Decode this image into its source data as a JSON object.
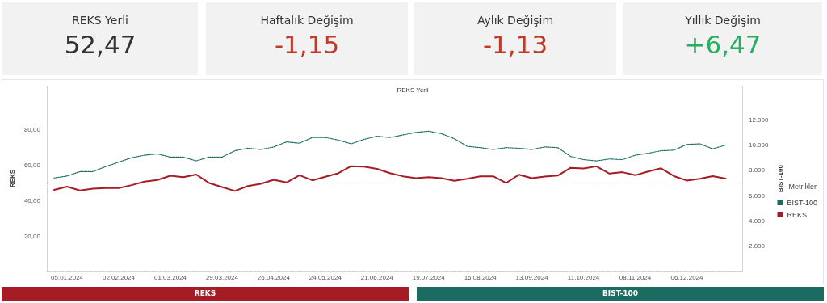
{
  "chart_data": [
    {
      "type": "other",
      "title": "REKS Yerli",
      "annotations": [
        "52,47"
      ],
      "color": "#333333"
    },
    {
      "type": "other",
      "title": "Haftalık Değişim",
      "annotations": [
        "-1,15"
      ],
      "color": "#c0392b"
    },
    {
      "type": "other",
      "title": "Aylık Değişim",
      "annotations": [
        "-1,13"
      ],
      "color": "#c0392b"
    },
    {
      "type": "other",
      "title": "Yıllık Değişim",
      "annotations": [
        "+6,47"
      ],
      "color": "#27ae60"
    },
    {
      "type": "line",
      "title": "REKS Yerli",
      "ylabel": "REKS",
      "y2label": "BIST-100",
      "legend_title": "Metrikler",
      "legend": "right",
      "grid": false,
      "marker": "none",
      "x": [
        "2023-12-29",
        "2024-01-05",
        "2024-01-12",
        "2024-01-19",
        "2024-01-26",
        "2024-02-02",
        "2024-02-09",
        "2024-02-16",
        "2024-02-23",
        "2024-03-01",
        "2024-03-08",
        "2024-03-15",
        "2024-03-22",
        "2024-03-29",
        "2024-04-05",
        "2024-04-12",
        "2024-04-19",
        "2024-04-26",
        "2024-05-03",
        "2024-05-10",
        "2024-05-17",
        "2024-05-24",
        "2024-05-31",
        "2024-06-07",
        "2024-06-14",
        "2024-06-21",
        "2024-06-28",
        "2024-07-05",
        "2024-07-12",
        "2024-07-19",
        "2024-07-26",
        "2024-08-02",
        "2024-08-09",
        "2024-08-16",
        "2024-08-23",
        "2024-08-30",
        "2024-09-06",
        "2024-09-13",
        "2024-09-20",
        "2024-09-27",
        "2024-10-04",
        "2024-10-11",
        "2024-10-18",
        "2024-10-25",
        "2024-11-01",
        "2024-11-08",
        "2024-11-15",
        "2024-11-22",
        "2024-11-29",
        "2024-12-06",
        "2024-12-13",
        "2024-12-20",
        "2024-12-27"
      ],
      "xlim": [
        "2023-12-25",
        "2025-01-05"
      ],
      "xticks": [
        {
          "value": "2024-01-05",
          "label": "05.01.2024"
        },
        {
          "value": "2024-02-02",
          "label": "02.02.2024"
        },
        {
          "value": "2024-03-01",
          "label": "01.03.2024"
        },
        {
          "value": "2024-03-29",
          "label": "29.03.2024"
        },
        {
          "value": "2024-04-26",
          "label": "26.04.2024"
        },
        {
          "value": "2024-05-24",
          "label": "24.05.2024"
        },
        {
          "value": "2024-06-21",
          "label": "21.06.2024"
        },
        {
          "value": "2024-07-19",
          "label": "19.07.2024"
        },
        {
          "value": "2024-08-16",
          "label": "16.08.2024"
        },
        {
          "value": "2024-09-13",
          "label": "13.09.2024"
        },
        {
          "value": "2024-10-11",
          "label": "11.10.2024"
        },
        {
          "value": "2024-11-08",
          "label": "08.11.2024"
        },
        {
          "value": "2024-12-06",
          "label": "06.12.2024"
        }
      ],
      "ylim": [
        0,
        105
      ],
      "yticks": [
        {
          "value": 20,
          "label": "20,00"
        },
        {
          "value": 40,
          "label": "40,00"
        },
        {
          "value": 60,
          "label": "60,00"
        },
        {
          "value": 80,
          "label": "80,00"
        }
      ],
      "y2lim": [
        0,
        14700
      ],
      "y2ticks": [
        {
          "value": 2000,
          "label": "2.000"
        },
        {
          "value": 4000,
          "label": "4.000"
        },
        {
          "value": 6000,
          "label": "6.000"
        },
        {
          "value": 8000,
          "label": "8.000"
        },
        {
          "value": 10000,
          "label": "10.000"
        },
        {
          "value": 12000,
          "label": "12.000"
        }
      ],
      "ref_lines": [
        {
          "axis": "y",
          "value": 50,
          "label": null,
          "color": "#cccccc",
          "line_style": "dotted"
        }
      ],
      "series": [
        {
          "name": "BIST-100",
          "color": "#1b6b63",
          "axis": "y2",
          "line_style": "dotted",
          "values": [
            7400,
            7550,
            7900,
            7900,
            8300,
            8650,
            9000,
            9200,
            9300,
            9050,
            9050,
            8750,
            9050,
            9050,
            9550,
            9750,
            9650,
            9850,
            10250,
            10150,
            10600,
            10600,
            10400,
            10100,
            10450,
            10700,
            10600,
            10800,
            11000,
            11100,
            10900,
            10500,
            9900,
            9800,
            9650,
            9800,
            9750,
            9650,
            9850,
            9800,
            9100,
            8850,
            8750,
            8900,
            8850,
            9200,
            9350,
            9550,
            9600,
            10050,
            10100,
            9700,
            10000
          ]
        },
        {
          "name": "REKS",
          "color": "#a51c24",
          "line_style": "solid",
          "values": [
            46.1,
            47.9,
            45.8,
            46.8,
            47.1,
            47.1,
            48.8,
            50.8,
            51.7,
            54.1,
            53.3,
            54.8,
            50.0,
            47.7,
            45.5,
            48.3,
            49.5,
            51.8,
            50.3,
            54.4,
            51.5,
            53.5,
            55.5,
            59.5,
            59.2,
            58.0,
            55.6,
            53.8,
            52.7,
            53.3,
            52.7,
            51.2,
            52.4,
            53.8,
            53.8,
            50.0,
            54.7,
            52.7,
            53.6,
            54.2,
            58.6,
            58.2,
            59.4,
            55.3,
            56.1,
            54.4,
            56.5,
            58.3,
            53.9,
            51.4,
            52.4,
            53.9,
            52.5
          ]
        }
      ]
    },
    {
      "type": "other",
      "categories": [
        "REKS",
        "BIST-100"
      ],
      "colors": [
        "#a51c24",
        "#1b6b63"
      ]
    }
  ]
}
